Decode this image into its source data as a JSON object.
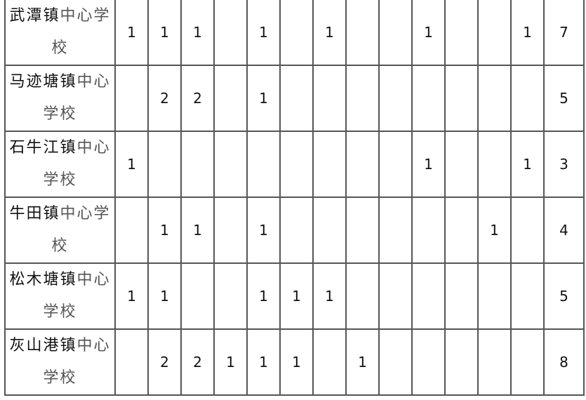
{
  "rows": [
    {
      "town": "武潭镇",
      "rest": "中心学校",
      "cells": [
        "1",
        "1",
        "1",
        "",
        "1",
        "",
        "1",
        "",
        "",
        "1",
        "",
        "",
        "1"
      ],
      "total": "7"
    },
    {
      "town": "马迹塘镇",
      "rest": "中心学校",
      "cells": [
        "",
        "2",
        "2",
        "",
        "1",
        "",
        "",
        "",
        "",
        "",
        "",
        "",
        ""
      ],
      "total": "5"
    },
    {
      "town": "石牛江镇",
      "rest": "中心学校",
      "cells": [
        "1",
        "",
        "",
        "",
        "",
        "",
        "",
        "",
        "",
        "1",
        "",
        "",
        "1"
      ],
      "total": "3"
    },
    {
      "town": "牛田镇",
      "rest": "中心学校",
      "cells": [
        "",
        "1",
        "1",
        "",
        "1",
        "",
        "",
        "",
        "",
        "",
        "",
        "1",
        ""
      ],
      "total": "4"
    },
    {
      "town": "松木塘镇",
      "rest": "中心学校",
      "cells": [
        "1",
        "1",
        "",
        "",
        "1",
        "1",
        "1",
        "",
        "",
        "",
        "",
        "",
        ""
      ],
      "total": "5"
    },
    {
      "town": "灰山港镇",
      "rest": "中心学校",
      "cells": [
        "",
        "2",
        "2",
        "1",
        "1",
        "1",
        "",
        "1",
        "",
        "",
        "",
        "",
        ""
      ],
      "total": "8"
    }
  ]
}
